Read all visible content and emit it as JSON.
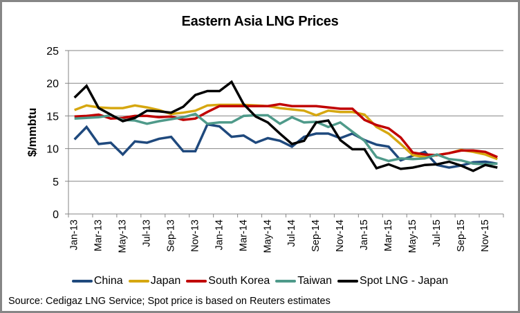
{
  "chart_data": {
    "type": "line",
    "title": "Eastern Asia LNG Prices",
    "xlabel": "",
    "ylabel": "$/mmbtu",
    "ylim": [
      0,
      25
    ],
    "yticks": [
      "0",
      "5",
      "10",
      "15",
      "20",
      "25"
    ],
    "grid": true,
    "legend_position": "bottom",
    "x": [
      "Jan-13",
      "Feb-13",
      "Mar-13",
      "Apr-13",
      "May-13",
      "Jun-13",
      "Jul-13",
      "Aug-13",
      "Sep-13",
      "Oct-13",
      "Nov-13",
      "Dec-13",
      "Jan-14",
      "Feb-14",
      "Mar-14",
      "Apr-14",
      "May-14",
      "Jun-14",
      "Jul-14",
      "Aug-14",
      "Sep-14",
      "Oct-14",
      "Nov-14",
      "Dec-14",
      "Jan-15",
      "Feb-15",
      "Mar-15",
      "Apr-15",
      "May-15",
      "Jun-15",
      "Jul-15",
      "Aug-15",
      "Sep-15",
      "Oct-15",
      "Nov-15",
      "Dec-15"
    ],
    "xtick_labels": [
      "Jan-13",
      "Mar-13",
      "May-13",
      "Jul-13",
      "Sep-13",
      "Nov-13",
      "Jan-14",
      "Mar-14",
      "May-14",
      "Jul-14",
      "Sep-14",
      "Nov-14",
      "Jan-15",
      "Mar-15",
      "May-15",
      "Jul-15",
      "Sep-15",
      "Nov-15"
    ],
    "series": [
      {
        "name": "China",
        "color": "#1F497D",
        "values": [
          11.4,
          13.3,
          10.7,
          10.9,
          9.1,
          11.1,
          10.9,
          11.5,
          11.8,
          9.6,
          9.6,
          13.7,
          13.4,
          11.8,
          12.0,
          10.9,
          11.6,
          11.2,
          10.3,
          11.8,
          12.3,
          12.3,
          11.6,
          12.3,
          11.3,
          10.6,
          10.3,
          8.2,
          8.9,
          9.5,
          7.5,
          7.1,
          7.4,
          7.9,
          8.0,
          7.7
        ]
      },
      {
        "name": "Japan",
        "color": "#D6A710",
        "values": [
          15.9,
          16.6,
          16.3,
          16.2,
          16.2,
          16.6,
          16.3,
          15.9,
          15.3,
          15.5,
          15.8,
          16.6,
          16.7,
          16.7,
          16.7,
          16.6,
          16.5,
          16.2,
          16.0,
          15.8,
          15.1,
          15.8,
          15.6,
          15.6,
          15.2,
          13.3,
          12.3,
          10.7,
          9.0,
          8.7,
          9.0,
          9.3,
          9.8,
          9.5,
          9.1,
          8.4
        ]
      },
      {
        "name": "South Korea",
        "color": "#C00000",
        "values": [
          14.9,
          15.0,
          15.2,
          14.6,
          14.7,
          15.0,
          15.0,
          14.8,
          14.9,
          14.4,
          14.6,
          15.6,
          16.5,
          16.5,
          16.5,
          16.5,
          16.5,
          16.8,
          16.5,
          16.5,
          16.5,
          16.3,
          16.1,
          16.1,
          14.4,
          13.6,
          13.1,
          11.7,
          9.4,
          9.1,
          9.0,
          9.3,
          9.7,
          9.7,
          9.5,
          8.7
        ]
      },
      {
        "name": "Taiwan",
        "color": "#4F9A8A",
        "values": [
          14.6,
          14.7,
          14.8,
          15.1,
          14.4,
          14.3,
          13.8,
          14.2,
          14.5,
          14.8,
          15.3,
          13.8,
          14.0,
          14.0,
          15.0,
          15.1,
          15.1,
          13.8,
          14.8,
          14.0,
          14.1,
          13.3,
          14.0,
          12.6,
          11.2,
          8.7,
          8.1,
          8.5,
          8.4,
          8.5,
          9.1,
          8.4,
          8.2,
          7.7,
          7.6,
          7.7
        ]
      },
      {
        "name": "Spot LNG - Japan",
        "color": "#000000",
        "values": [
          17.8,
          19.6,
          16.2,
          15.2,
          14.2,
          14.7,
          15.8,
          15.7,
          15.5,
          16.4,
          18.2,
          18.8,
          18.8,
          20.2,
          16.8,
          14.9,
          14.0,
          12.3,
          10.7,
          11.2,
          14.0,
          14.3,
          11.3,
          9.9,
          9.9,
          7.0,
          7.6,
          6.9,
          7.1,
          7.5,
          7.6,
          8.0,
          7.4,
          6.6,
          7.5,
          7.1
        ]
      }
    ]
  },
  "source_note": "Source: Cedigaz LNG Service; Spot price is based on Reuters estimates"
}
